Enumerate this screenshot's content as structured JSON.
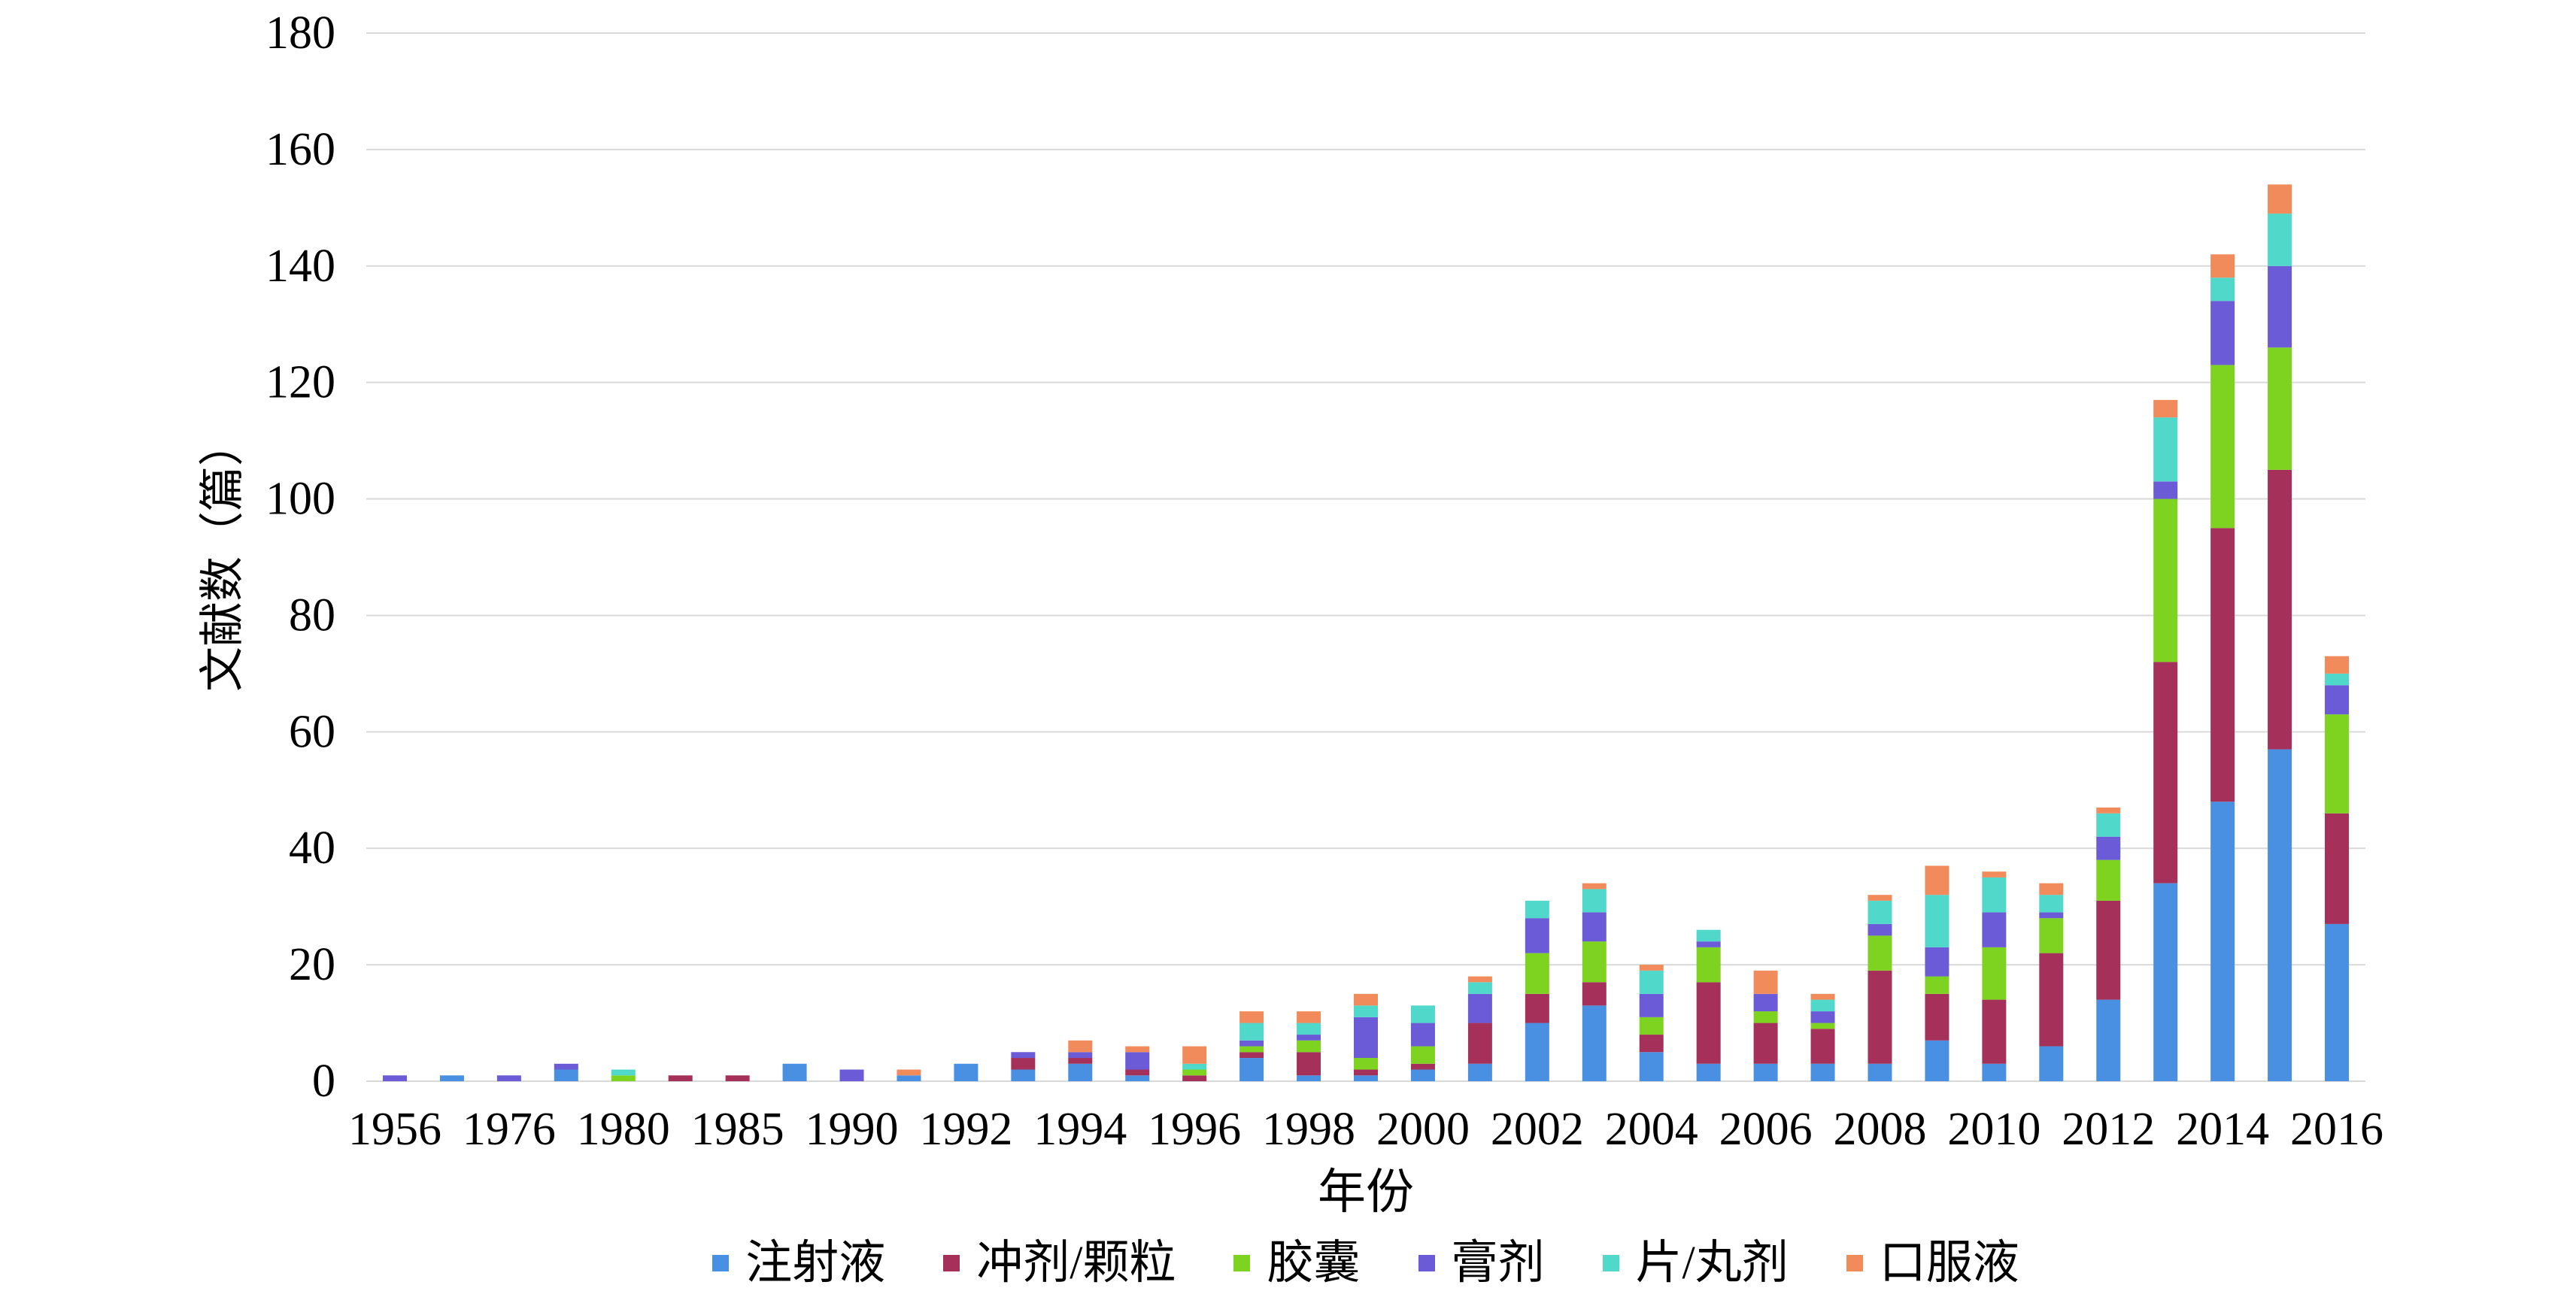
{
  "chart_data": {
    "type": "bar",
    "stacked": true,
    "xlabel": "年份",
    "ylabel": "文献数（篇）",
    "ylim": [
      0,
      180
    ],
    "yticks": [
      0,
      20,
      40,
      60,
      80,
      100,
      120,
      140,
      160,
      180
    ],
    "grid": true,
    "legend_position": "bottom",
    "categories": [
      "1956",
      "",
      "1976",
      "",
      "1980",
      "",
      "1985",
      "",
      "1990",
      "",
      "1992",
      "",
      "1994",
      "",
      "1996",
      "",
      "1998",
      "",
      "2000",
      "",
      "2002",
      "",
      "2004",
      "",
      "2006",
      "",
      "2008",
      "",
      "2010",
      "",
      "2012",
      "",
      "2014",
      "",
      "2016"
    ],
    "series": [
      {
        "name": "注射液",
        "color": "#4A90E2",
        "values": [
          0,
          1,
          0,
          2,
          0,
          0,
          0,
          3,
          0,
          1,
          3,
          2,
          3,
          1,
          0,
          4,
          1,
          1,
          2,
          3,
          10,
          13,
          5,
          3,
          3,
          3,
          3,
          7,
          3,
          6,
          14,
          34,
          48,
          57,
          27
        ]
      },
      {
        "name": "冲剂/颗粒",
        "color": "#A5315A",
        "values": [
          0,
          0,
          0,
          0,
          0,
          1,
          1,
          0,
          0,
          0,
          0,
          2,
          1,
          1,
          1,
          1,
          4,
          1,
          1,
          7,
          5,
          4,
          3,
          14,
          7,
          6,
          16,
          8,
          11,
          16,
          17,
          38,
          47,
          48,
          19
        ]
      },
      {
        "name": "胶囊",
        "color": "#7ED321",
        "values": [
          0,
          0,
          0,
          0,
          1,
          0,
          0,
          0,
          0,
          0,
          0,
          0,
          0,
          0,
          1,
          1,
          2,
          2,
          3,
          0,
          7,
          7,
          3,
          6,
          2,
          1,
          6,
          3,
          9,
          6,
          7,
          28,
          28,
          21,
          17
        ]
      },
      {
        "name": "膏剂",
        "color": "#6B5BD6",
        "values": [
          1,
          0,
          1,
          1,
          0,
          0,
          0,
          0,
          2,
          0,
          0,
          1,
          1,
          3,
          0,
          1,
          1,
          7,
          4,
          5,
          6,
          5,
          4,
          1,
          3,
          2,
          2,
          5,
          6,
          1,
          4,
          3,
          11,
          14,
          5
        ]
      },
      {
        "name": "片/丸剂",
        "color": "#50D8CB",
        "values": [
          0,
          0,
          0,
          0,
          1,
          0,
          0,
          0,
          0,
          0,
          0,
          0,
          0,
          0,
          1,
          3,
          2,
          2,
          3,
          2,
          3,
          4,
          4,
          2,
          0,
          2,
          4,
          9,
          6,
          3,
          4,
          11,
          4,
          9,
          2
        ]
      },
      {
        "name": "口服液",
        "color": "#F28B5B",
        "values": [
          0,
          0,
          0,
          0,
          0,
          0,
          0,
          0,
          0,
          1,
          0,
          0,
          2,
          1,
          3,
          2,
          2,
          2,
          0,
          1,
          0,
          1,
          1,
          0,
          4,
          1,
          1,
          5,
          1,
          2,
          1,
          3,
          4,
          5,
          3
        ]
      }
    ]
  }
}
